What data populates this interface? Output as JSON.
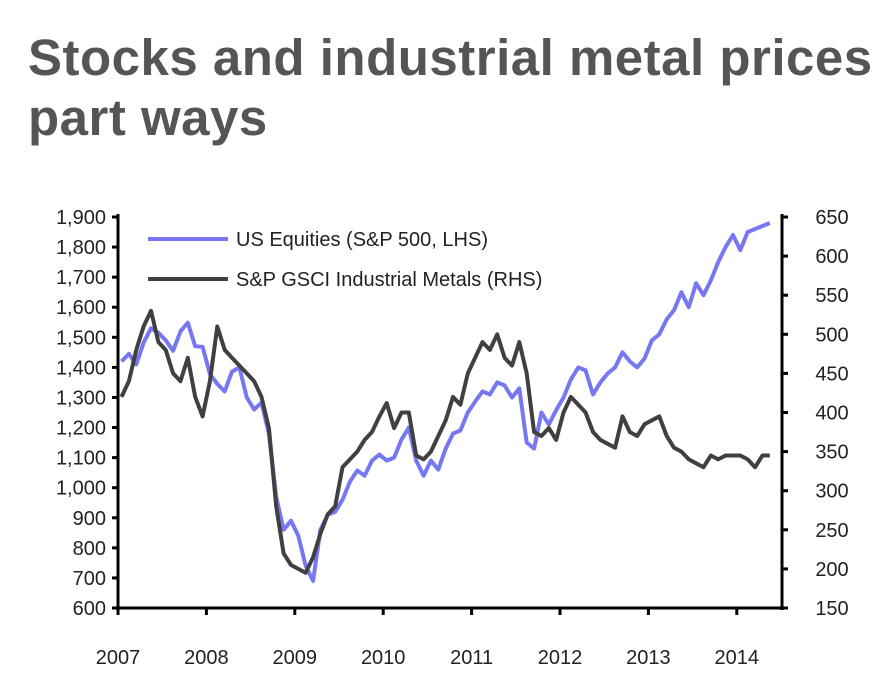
{
  "chart_data": {
    "type": "line",
    "title": "Stocks and industrial metal prices part ways",
    "x_ticks": [
      "2007",
      "2008",
      "2009",
      "2010",
      "2011",
      "2012",
      "2013",
      "2014"
    ],
    "left_axis": {
      "ylim": [
        600,
        1900
      ],
      "ticks": [
        "600",
        "700",
        "800",
        "900",
        "1,000",
        "1,100",
        "1,200",
        "1,300",
        "1,400",
        "1,500",
        "1,600",
        "1,700",
        "1,800",
        "1,900"
      ]
    },
    "right_axis": {
      "ylim": [
        150,
        650
      ],
      "ticks": [
        "150",
        "200",
        "250",
        "300",
        "350",
        "400",
        "450",
        "500",
        "550",
        "600",
        "650"
      ]
    },
    "grid": false,
    "legend_position": "top-left",
    "x": [
      "2007-01",
      "2007-02",
      "2007-03",
      "2007-04",
      "2007-05",
      "2007-06",
      "2007-07",
      "2007-08",
      "2007-09",
      "2007-10",
      "2007-11",
      "2007-12",
      "2008-01",
      "2008-02",
      "2008-03",
      "2008-04",
      "2008-05",
      "2008-06",
      "2008-07",
      "2008-08",
      "2008-09",
      "2008-10",
      "2008-11",
      "2008-12",
      "2009-01",
      "2009-02",
      "2009-03",
      "2009-04",
      "2009-05",
      "2009-06",
      "2009-07",
      "2009-08",
      "2009-09",
      "2009-10",
      "2009-11",
      "2009-12",
      "2010-01",
      "2010-02",
      "2010-03",
      "2010-04",
      "2010-05",
      "2010-06",
      "2010-07",
      "2010-08",
      "2010-09",
      "2010-10",
      "2010-11",
      "2010-12",
      "2011-01",
      "2011-02",
      "2011-03",
      "2011-04",
      "2011-05",
      "2011-06",
      "2011-07",
      "2011-08",
      "2011-09",
      "2011-10",
      "2011-11",
      "2011-12",
      "2012-01",
      "2012-02",
      "2012-03",
      "2012-04",
      "2012-05",
      "2012-06",
      "2012-07",
      "2012-08",
      "2012-09",
      "2012-10",
      "2012-11",
      "2012-12",
      "2013-01",
      "2013-02",
      "2013-03",
      "2013-04",
      "2013-05",
      "2013-06",
      "2013-07",
      "2013-08",
      "2013-09",
      "2013-10",
      "2013-11",
      "2013-12",
      "2014-01",
      "2014-02",
      "2014-03",
      "2014-04",
      "2014-05"
    ],
    "series": [
      {
        "name": "US Equities (S&P 500, LHS)",
        "axis": "left",
        "color": "#7777f2",
        "values": [
          1420,
          1445,
          1410,
          1482,
          1530,
          1515,
          1490,
          1455,
          1520,
          1549,
          1470,
          1468,
          1378,
          1345,
          1320,
          1386,
          1400,
          1300,
          1260,
          1283,
          1180,
          970,
          860,
          890,
          840,
          740,
          690,
          860,
          910,
          920,
          960,
          1020,
          1057,
          1040,
          1090,
          1110,
          1090,
          1100,
          1160,
          1200,
          1090,
          1040,
          1090,
          1060,
          1130,
          1180,
          1190,
          1250,
          1286,
          1320,
          1310,
          1350,
          1340,
          1300,
          1330,
          1150,
          1130,
          1250,
          1210,
          1258,
          1300,
          1360,
          1400,
          1390,
          1310,
          1350,
          1380,
          1400,
          1450,
          1420,
          1400,
          1430,
          1490,
          1510,
          1560,
          1590,
          1650,
          1600,
          1680,
          1640,
          1690,
          1750,
          1800,
          1840,
          1790,
          1850,
          1860,
          1870,
          1880
        ]
      },
      {
        "name": "S&P GSCI Industrial Metals (RHS)",
        "axis": "right",
        "color": "#404040",
        "values": [
          420,
          440,
          480,
          510,
          530,
          490,
          480,
          450,
          440,
          470,
          420,
          395,
          440,
          510,
          480,
          470,
          460,
          450,
          440,
          420,
          380,
          280,
          220,
          205,
          200,
          195,
          215,
          245,
          270,
          280,
          330,
          340,
          350,
          365,
          375,
          395,
          412,
          380,
          400,
          400,
          345,
          340,
          350,
          370,
          390,
          420,
          410,
          450,
          470,
          490,
          480,
          500,
          470,
          460,
          490,
          450,
          375,
          370,
          380,
          365,
          400,
          420,
          410,
          400,
          375,
          365,
          360,
          355,
          395,
          375,
          370,
          385,
          390,
          395,
          370,
          355,
          350,
          340,
          335,
          330,
          345,
          340,
          345,
          345,
          345,
          340,
          330,
          345,
          345
        ]
      }
    ]
  }
}
